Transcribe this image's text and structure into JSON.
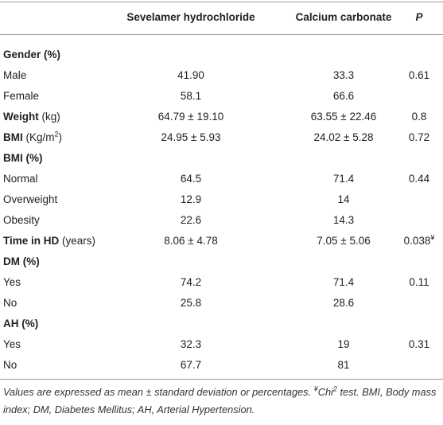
{
  "table": {
    "header": [
      "Sevelamer hydrochloride",
      "Calcium carbonate",
      "P"
    ],
    "rows": [
      {
        "label": "Gender (%)",
        "section": true
      },
      {
        "label": "Male",
        "cells": [
          "41.90",
          "33.3",
          "0.61"
        ]
      },
      {
        "label": "Female",
        "cells": [
          "58.1",
          "66.6"
        ]
      },
      {
        "label": "Weight",
        "unit": " (kg)",
        "cells": [
          "64.79 ± 19.10",
          "63.55 ± 22.46",
          "0.8"
        ]
      },
      {
        "label": "BMI",
        "unit": " (Kg/m",
        "unit_sup": "2",
        "unit_end": ")",
        "cells": [
          "24.95 ± 5.93",
          "24.02 ± 5.28",
          "0.72"
        ]
      },
      {
        "label": "BMI (%)",
        "section": true
      },
      {
        "label": "Normal",
        "cells": [
          "64.5",
          "71.4",
          "0.44"
        ]
      },
      {
        "label": "Overweight",
        "cells": [
          "12.9",
          "14"
        ]
      },
      {
        "label": "Obesity",
        "cells": [
          "22.6",
          "14.3"
        ]
      },
      {
        "label": "Time in HD",
        "unit": " (years)",
        "cells": [
          "8.06 ± 4.78",
          "7.05 ± 5.06",
          "0.038"
        ],
        "p_sup": "¥"
      },
      {
        "label": "DM (%)",
        "section": true
      },
      {
        "label": "Yes",
        "cells": [
          "74.2",
          "71.4",
          "0.11"
        ]
      },
      {
        "label": "No",
        "cells": [
          "25.8",
          "28.6"
        ]
      },
      {
        "label": "AH (%)",
        "section": true
      },
      {
        "label": "Yes",
        "cells": [
          "32.3",
          "19",
          "0.31"
        ]
      },
      {
        "label": "No",
        "cells": [
          "67.7",
          "81"
        ]
      }
    ]
  },
  "footnote": {
    "text1": "Values are expressed as mean ± standard deviation or percentages. ",
    "sup1": "¥",
    "text2": "Chi",
    "sup2": "2",
    "text3": " test. BMI, Body mass index; DM, Diabetes Mellitus; AH, Arterial Hypertension."
  }
}
